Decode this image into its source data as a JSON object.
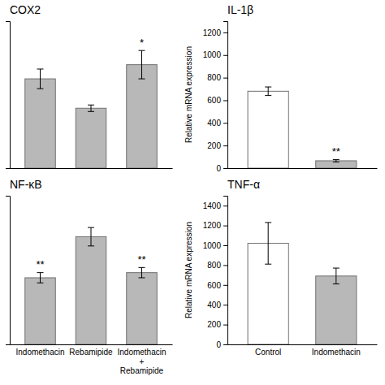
{
  "chart_data": [
    {
      "type": "bar",
      "title": "COX2",
      "categories": [
        null,
        null,
        null
      ],
      "values": [
        0.82,
        0.55,
        0.95
      ],
      "errors": [
        0.09,
        0.03,
        0.13
      ],
      "colors": [
        "#b8b8b8",
        "#b8b8b8",
        "#b8b8b8"
      ],
      "annotations": [
        null,
        null,
        "*"
      ],
      "ylim": [
        0,
        1.35
      ],
      "tick_labels": false
    },
    {
      "type": "bar",
      "title": "IL-1β",
      "categories": [
        null,
        null
      ],
      "values": [
        680,
        65
      ],
      "errors": [
        38,
        10
      ],
      "colors": [
        "#ffffff",
        "#b8b8b8"
      ],
      "annotations": [
        null,
        "**"
      ],
      "ylim": [
        0,
        1300
      ],
      "yticks": [
        0,
        200,
        400,
        600,
        800,
        1000,
        1200
      ],
      "y_label": "Relative mRNA expression",
      "tick_labels": "y"
    },
    {
      "type": "bar",
      "title": "NF-κB",
      "categories": [
        "Indomethacin",
        "Rebamipide",
        "Indomethacin\n+\nRebamipide"
      ],
      "values": [
        0.65,
        1.05,
        0.7
      ],
      "errors": [
        0.05,
        0.09,
        0.05
      ],
      "colors": [
        "#b8b8b8",
        "#b8b8b8",
        "#b8b8b8"
      ],
      "annotations": [
        "**",
        null,
        "**"
      ],
      "ylim": [
        0,
        1.45
      ],
      "tick_labels": "x"
    },
    {
      "type": "bar",
      "title": "TNF-α",
      "categories": [
        "Control",
        "Indomethacin"
      ],
      "values": [
        1020,
        690
      ],
      "errors": [
        210,
        80
      ],
      "colors": [
        "#ffffff",
        "#b8b8b8"
      ],
      "ylim": [
        0,
        1500
      ],
      "yticks": [
        0,
        200,
        400,
        600,
        800,
        1000,
        1200,
        1400
      ],
      "y_label": "Relative mRNA expression",
      "tick_labels": true
    }
  ]
}
